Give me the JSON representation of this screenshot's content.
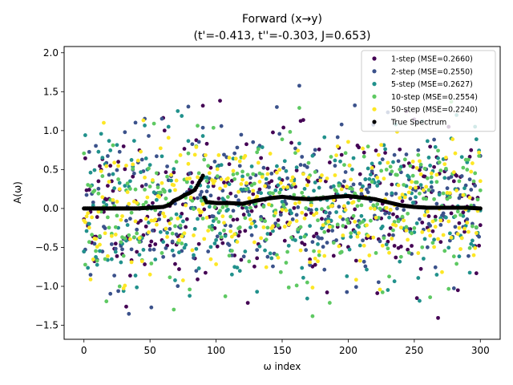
{
  "chart_data": {
    "type": "scatter",
    "title": "Forward (x→y)",
    "subtitle": "(t'=-0.413, t''=-0.303, J=0.653)",
    "xlabel": "ω index",
    "ylabel": "A(ω)",
    "xlim": [
      -15,
      315
    ],
    "ylim": [
      -1.68,
      2.08
    ],
    "xticks": [
      0,
      50,
      100,
      150,
      200,
      250,
      300
    ],
    "yticks": [
      -1.5,
      -1.0,
      -0.5,
      0.0,
      0.5,
      1.0,
      1.5,
      2.0
    ],
    "xtick_labels": [
      "0",
      "50",
      "100",
      "150",
      "200",
      "250",
      "300"
    ],
    "ytick_labels": [
      "−1.5",
      "−1.0",
      "−0.5",
      "0.0",
      "0.5",
      "1.0",
      "1.5",
      "2.0"
    ],
    "grid": false,
    "legend_position": "top-right",
    "n_points": 301,
    "series": [
      {
        "name": "1-step (MSE=0.2660)",
        "color": "#440154",
        "noise_seed": 11,
        "spread": 0.5
      },
      {
        "name": "2-step (MSE=0.2550)",
        "color": "#3b528b",
        "noise_seed": 23,
        "spread": 0.5
      },
      {
        "name": "5-step (MSE=0.2627)",
        "color": "#21918c",
        "noise_seed": 37,
        "spread": 0.5
      },
      {
        "name": "10-step (MSE=0.2554)",
        "color": "#5ec962",
        "noise_seed": 53,
        "spread": 0.5
      },
      {
        "name": "50-step (MSE=0.2240)",
        "color": "#fde725",
        "noise_seed": 71,
        "spread": 0.48
      }
    ],
    "true_spectrum": {
      "name": "True Spectrum",
      "color": "#000000",
      "x": [
        0,
        20,
        40,
        60,
        65,
        68,
        72,
        76,
        80,
        84,
        86,
        88,
        90,
        91,
        93,
        95,
        100,
        110,
        120,
        125,
        130,
        140,
        150,
        160,
        170,
        180,
        190,
        200,
        210,
        220,
        230,
        240,
        250,
        260,
        270,
        280,
        290,
        300
      ],
      "y": [
        0.0,
        0.0,
        0.0,
        0.02,
        0.05,
        0.1,
        0.13,
        0.17,
        0.2,
        0.24,
        0.3,
        0.36,
        0.42,
        0.14,
        0.08,
        0.08,
        0.07,
        0.07,
        0.06,
        0.08,
        0.1,
        0.13,
        0.15,
        0.13,
        0.12,
        0.13,
        0.15,
        0.16,
        0.14,
        0.12,
        0.08,
        0.04,
        0.02,
        0.01,
        0.01,
        0.01,
        0.01,
        0.0
      ]
    }
  }
}
